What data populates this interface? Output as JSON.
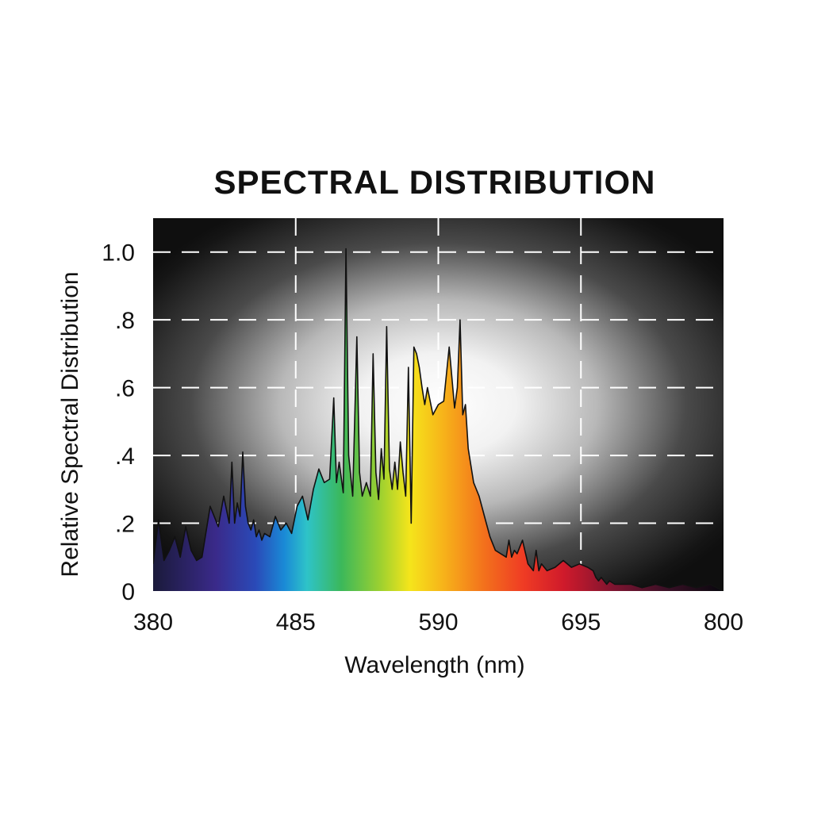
{
  "chart_data": {
    "type": "area",
    "title": "SPECTRAL DISTRIBUTION",
    "xlabel": "Wavelength (nm)",
    "ylabel": "Relative Spectral Distribution",
    "xlim": [
      380,
      800
    ],
    "ylim": [
      0,
      1.1
    ],
    "x_ticks": [
      380,
      485,
      590,
      695,
      800
    ],
    "x_tick_labels": [
      "380",
      "485",
      "590",
      "695",
      "800"
    ],
    "y_ticks": [
      0,
      0.2,
      0.4,
      0.6,
      0.8,
      1.0
    ],
    "y_tick_labels": [
      "0",
      ".2",
      ".4",
      ".6",
      ".8",
      "1.0"
    ],
    "grid": true,
    "fill": "visible-spectrum gradient",
    "background": "black with white radial glow",
    "x": [
      380,
      384,
      388,
      392,
      396,
      400,
      404,
      408,
      412,
      416,
      422,
      428,
      432,
      436,
      438,
      440,
      442,
      444,
      446,
      448,
      450,
      452,
      454,
      456,
      458,
      460,
      462,
      466,
      470,
      474,
      478,
      482,
      486,
      490,
      494,
      498,
      502,
      506,
      510,
      513,
      515,
      517,
      520,
      522,
      524,
      527,
      530,
      532,
      534,
      537,
      540,
      542,
      544,
      546,
      548,
      550,
      552,
      554,
      556,
      558,
      560,
      562,
      564,
      566,
      568,
      570,
      572,
      574,
      576,
      578,
      580,
      582,
      586,
      590,
      594,
      598,
      602,
      604,
      606,
      608,
      610,
      612,
      616,
      620,
      624,
      628,
      632,
      636,
      640,
      642,
      644,
      646,
      648,
      652,
      656,
      660,
      662,
      664,
      666,
      670,
      676,
      682,
      688,
      694,
      700,
      704,
      706,
      708,
      710,
      712,
      714,
      716,
      720,
      726,
      732,
      740,
      750,
      760,
      770,
      780,
      790,
      800
    ],
    "values": [
      0.08,
      0.21,
      0.09,
      0.12,
      0.16,
      0.1,
      0.19,
      0.12,
      0.09,
      0.1,
      0.25,
      0.19,
      0.28,
      0.2,
      0.38,
      0.2,
      0.26,
      0.22,
      0.41,
      0.25,
      0.2,
      0.18,
      0.21,
      0.16,
      0.18,
      0.15,
      0.17,
      0.16,
      0.22,
      0.18,
      0.2,
      0.17,
      0.25,
      0.28,
      0.21,
      0.3,
      0.36,
      0.32,
      0.33,
      0.57,
      0.32,
      0.38,
      0.29,
      1.01,
      0.4,
      0.28,
      0.75,
      0.35,
      0.28,
      0.32,
      0.28,
      0.7,
      0.35,
      0.27,
      0.42,
      0.33,
      0.78,
      0.36,
      0.3,
      0.38,
      0.3,
      0.44,
      0.35,
      0.28,
      0.66,
      0.2,
      0.72,
      0.7,
      0.66,
      0.6,
      0.55,
      0.6,
      0.52,
      0.55,
      0.56,
      0.72,
      0.54,
      0.6,
      0.8,
      0.52,
      0.55,
      0.42,
      0.32,
      0.28,
      0.22,
      0.16,
      0.12,
      0.11,
      0.1,
      0.15,
      0.1,
      0.12,
      0.11,
      0.15,
      0.08,
      0.06,
      0.12,
      0.06,
      0.08,
      0.06,
      0.07,
      0.09,
      0.07,
      0.08,
      0.07,
      0.06,
      0.04,
      0.03,
      0.04,
      0.03,
      0.02,
      0.03,
      0.02,
      0.02,
      0.02,
      0.01,
      0.02,
      0.01,
      0.02,
      0.01,
      0.02,
      0.0
    ]
  }
}
